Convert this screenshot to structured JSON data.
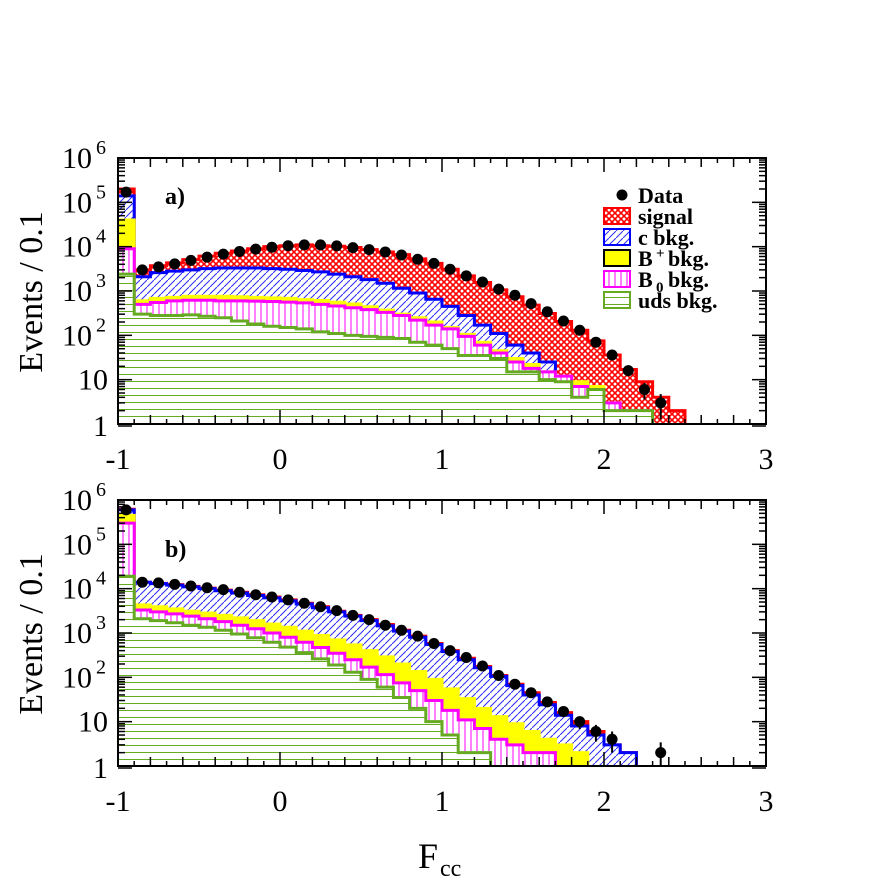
{
  "chart_data": [
    {
      "panel": "a)",
      "type": "histogram",
      "ylabel": "Events / 0.1",
      "xlabel": "F",
      "xlabel_sub": "cc",
      "xlim": [
        -1,
        3
      ],
      "ylim": [
        1,
        1000000
      ],
      "yscale": "log",
      "xticks": [
        "-1",
        "0",
        "1",
        "2",
        "3"
      ],
      "yticks": [
        {
          "base": "1",
          "exp": ""
        },
        {
          "base": "10",
          "exp": ""
        },
        {
          "base": "10",
          "exp": "2"
        },
        {
          "base": "10",
          "exp": "3"
        },
        {
          "base": "10",
          "exp": "4"
        },
        {
          "base": "10",
          "exp": "5"
        },
        {
          "base": "10",
          "exp": "6"
        }
      ],
      "legend": {
        "placement": "top-right",
        "entries": [
          {
            "key": "data",
            "label": "Data",
            "sub": ""
          },
          {
            "key": "signal",
            "label": "signal",
            "sub": ""
          },
          {
            "key": "c",
            "label": "c bkg.",
            "sub": ""
          },
          {
            "key": "bplus",
            "label": "B bkg.",
            "sub": "+"
          },
          {
            "key": "b0",
            "label": "B bkg.",
            "sub": "0"
          },
          {
            "key": "uds",
            "label": "uds bkg.",
            "sub": ""
          }
        ]
      },
      "x_edges_start": -1.0,
      "bin_width": 0.1,
      "stack_order": [
        "uds",
        "b0",
        "bplus",
        "c",
        "signal"
      ],
      "cumulative": {
        "uds": [
          2400,
          300,
          280,
          280,
          290,
          270,
          250,
          210,
          180,
          160,
          150,
          140,
          120,
          110,
          100,
          95,
          90,
          85,
          70,
          60,
          50,
          35,
          35,
          30,
          15,
          15,
          10,
          9,
          4,
          6,
          2,
          2,
          2,
          1,
          1,
          0,
          0,
          0,
          0,
          0
        ],
        "b0": [
          9000,
          500,
          550,
          600,
          620,
          620,
          600,
          600,
          590,
          580,
          560,
          540,
          500,
          460,
          420,
          380,
          330,
          280,
          220,
          170,
          140,
          95,
          60,
          40,
          25,
          18,
          15,
          12,
          7,
          6,
          3,
          2,
          2,
          1,
          1,
          0,
          0,
          0,
          0,
          0
        ],
        "bplus": [
          40000,
          600,
          680,
          720,
          760,
          760,
          760,
          740,
          720,
          700,
          680,
          640,
          610,
          560,
          510,
          440,
          370,
          300,
          250,
          200,
          150,
          105,
          70,
          45,
          30,
          22,
          15,
          12,
          9,
          7,
          3,
          2,
          2,
          1,
          1,
          0,
          0,
          0,
          0,
          0
        ],
        "c": [
          140000,
          2100,
          2600,
          2800,
          3000,
          3200,
          3300,
          3300,
          3300,
          3200,
          3100,
          2900,
          2700,
          2400,
          2100,
          1800,
          1500,
          1150,
          900,
          650,
          450,
          280,
          170,
          110,
          60,
          40,
          25,
          12,
          8,
          4,
          2,
          1,
          1,
          0,
          0,
          0,
          0,
          0,
          0,
          0
        ],
        "signal": [
          200000,
          3000,
          3700,
          4300,
          5100,
          6100,
          7100,
          8000,
          9000,
          10000,
          10500,
          11000,
          10500,
          10200,
          9600,
          8600,
          7600,
          6600,
          5300,
          4200,
          3100,
          2200,
          1550,
          1060,
          740,
          480,
          310,
          205,
          130,
          75,
          36,
          17,
          9,
          4,
          2,
          0,
          0,
          0,
          0,
          0
        ]
      },
      "data_points": {
        "x": [
          -0.95,
          -0.85,
          -0.75,
          -0.65,
          -0.55,
          -0.45,
          -0.35,
          -0.25,
          -0.15,
          -0.05,
          0.05,
          0.15,
          0.25,
          0.35,
          0.45,
          0.55,
          0.65,
          0.75,
          0.85,
          0.95,
          1.05,
          1.15,
          1.25,
          1.35,
          1.45,
          1.55,
          1.65,
          1.75,
          1.85,
          1.95,
          2.05,
          2.15,
          2.25,
          2.35
        ],
        "y": [
          170000,
          3000,
          3500,
          4100,
          4900,
          5800,
          6800,
          7800,
          8800,
          9700,
          10500,
          11000,
          11000,
          10400,
          9500,
          8600,
          7600,
          6500,
          5200,
          4200,
          3100,
          2200,
          1600,
          1100,
          800,
          520,
          340,
          210,
          130,
          70,
          36,
          16,
          6,
          3
        ]
      }
    },
    {
      "panel": "b)",
      "type": "histogram",
      "ylabel": "Events / 0.1",
      "xlabel": "F",
      "xlabel_sub": "cc",
      "xlim": [
        -1,
        3
      ],
      "ylim": [
        1,
        1000000
      ],
      "yscale": "log",
      "xticks": [
        "-1",
        "0",
        "1",
        "2",
        "3"
      ],
      "yticks": [
        {
          "base": "1",
          "exp": ""
        },
        {
          "base": "10",
          "exp": ""
        },
        {
          "base": "10",
          "exp": "2"
        },
        {
          "base": "10",
          "exp": "3"
        },
        {
          "base": "10",
          "exp": "4"
        },
        {
          "base": "10",
          "exp": "5"
        },
        {
          "base": "10",
          "exp": "6"
        }
      ],
      "x_edges_start": -1.0,
      "bin_width": 0.1,
      "stack_order": [
        "uds",
        "b0",
        "bplus",
        "c",
        "signal"
      ],
      "cumulative": {
        "uds": [
          19000,
          2100,
          1900,
          1700,
          1500,
          1350,
          1150,
          950,
          780,
          620,
          480,
          360,
          260,
          190,
          130,
          90,
          60,
          35,
          20,
          10,
          5,
          2,
          2,
          1,
          1,
          1,
          1,
          1,
          0,
          0,
          0,
          0,
          0,
          0,
          0,
          0,
          0,
          0,
          0,
          0
        ],
        "b0": [
          300000,
          3300,
          3000,
          2700,
          2400,
          2100,
          1800,
          1500,
          1250,
          1000,
          800,
          620,
          470,
          350,
          250,
          170,
          115,
          75,
          50,
          30,
          18,
          11,
          7,
          4,
          3,
          2,
          2,
          1,
          1,
          1,
          0,
          0,
          0,
          0,
          0,
          0,
          0,
          0,
          0,
          0
        ],
        "bplus": [
          450000,
          4300,
          3900,
          3500,
          3100,
          2800,
          2500,
          2200,
          1900,
          1600,
          1350,
          1100,
          880,
          700,
          540,
          400,
          290,
          200,
          135,
          90,
          55,
          33,
          20,
          13,
          9,
          6,
          4,
          3,
          2,
          1,
          1,
          1,
          0,
          0,
          0,
          0,
          0,
          0,
          0,
          0
        ],
        "c": [
          600000,
          14000,
          13000,
          12000,
          11000,
          10000,
          9000,
          8000,
          7000,
          6200,
          5300,
          4500,
          3700,
          3000,
          2400,
          1900,
          1450,
          1100,
          800,
          550,
          380,
          250,
          165,
          105,
          65,
          40,
          24,
          14,
          8,
          5,
          3,
          2,
          1,
          1,
          0,
          0,
          0,
          0,
          0,
          0
        ],
        "signal": [
          620000,
          14000,
          13200,
          12300,
          11300,
          10300,
          9300,
          8300,
          7300,
          6500,
          5600,
          4700,
          3900,
          3100,
          2500,
          2000,
          1550,
          1150,
          850,
          580,
          400,
          270,
          175,
          110,
          70,
          45,
          27,
          16,
          10,
          6,
          3,
          2,
          1,
          1,
          0,
          0,
          0,
          0,
          0,
          0
        ]
      },
      "data_points": {
        "x": [
          -0.95,
          -0.85,
          -0.75,
          -0.65,
          -0.55,
          -0.45,
          -0.35,
          -0.25,
          -0.15,
          -0.05,
          0.05,
          0.15,
          0.25,
          0.35,
          0.45,
          0.55,
          0.65,
          0.75,
          0.85,
          0.95,
          1.05,
          1.15,
          1.25,
          1.35,
          1.45,
          1.55,
          1.65,
          1.75,
          1.85,
          1.95,
          2.05,
          2.35
        ],
        "y": [
          600000,
          14000,
          13500,
          12500,
          11500,
          10500,
          9500,
          8300,
          7300,
          6500,
          5600,
          4700,
          3900,
          3200,
          2500,
          2000,
          1500,
          1150,
          850,
          580,
          400,
          280,
          180,
          110,
          70,
          45,
          28,
          17,
          10,
          6,
          4,
          2
        ]
      }
    }
  ],
  "colors": {
    "signal_fill": "#ff0000",
    "signal_line": "#ff0000",
    "c_fill": "#1a1aff",
    "c_line": "#0000ff",
    "bplus_fill": "#ffff00",
    "bplus_line": "#ffff00",
    "b0_fill": "#ff00ff",
    "b0_line": "#ff00ff",
    "uds_fill": "#66aa22",
    "uds_line": "#66aa22",
    "data": "#000000"
  }
}
